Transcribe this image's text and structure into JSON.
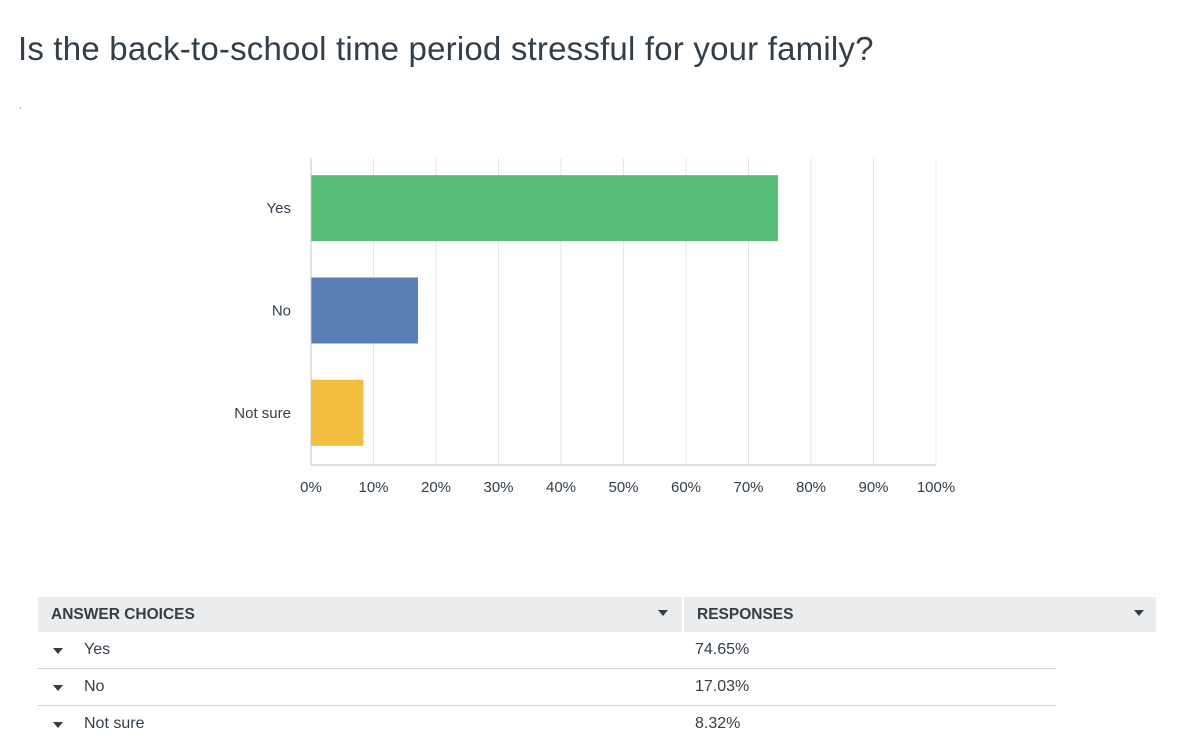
{
  "title": "Is the back-to-school time period stressful for your family?",
  "chart_data": {
    "type": "bar",
    "orientation": "horizontal",
    "categories": [
      "Yes",
      "No",
      "Not sure"
    ],
    "values": [
      74.65,
      17.03,
      8.32
    ],
    "colors": [
      "#57bf76",
      "#5b7db5",
      "#f0c03e"
    ],
    "xlim": [
      0,
      100
    ],
    "xticks": [
      "0%",
      "10%",
      "20%",
      "30%",
      "40%",
      "50%",
      "60%",
      "70%",
      "80%",
      "90%",
      "100%"
    ],
    "grid": true
  },
  "table": {
    "headers": {
      "choices": "ANSWER CHOICES",
      "responses": "RESPONSES"
    },
    "rows": [
      {
        "choice": "Yes",
        "response": "74.65%"
      },
      {
        "choice": "No",
        "response": "17.03%"
      },
      {
        "choice": "Not sure",
        "response": "8.32%"
      }
    ]
  },
  "icons": {
    "sort": "chevron-down-icon",
    "expand": "caret-down-icon"
  }
}
